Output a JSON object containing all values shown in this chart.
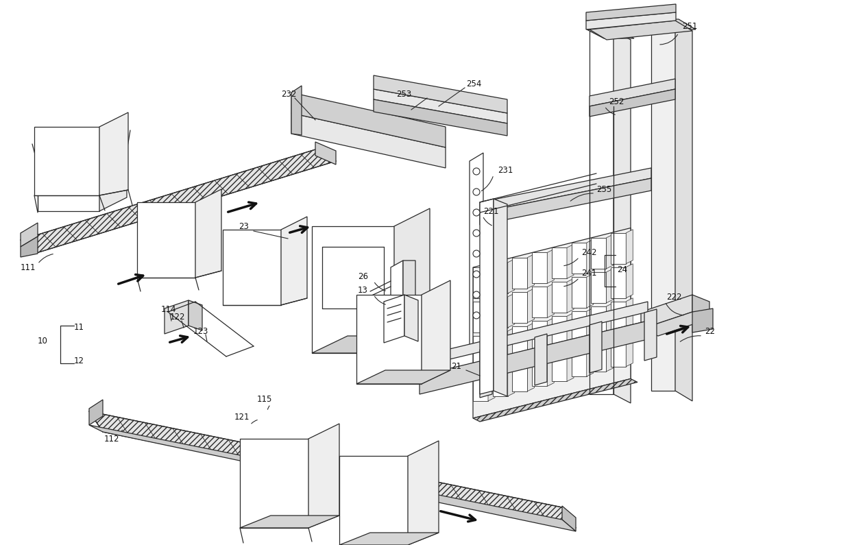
{
  "fig_width": 12.4,
  "fig_height": 7.95,
  "bg_color": "#ffffff",
  "line_color": "#2a2a2a",
  "line_width": 0.9
}
